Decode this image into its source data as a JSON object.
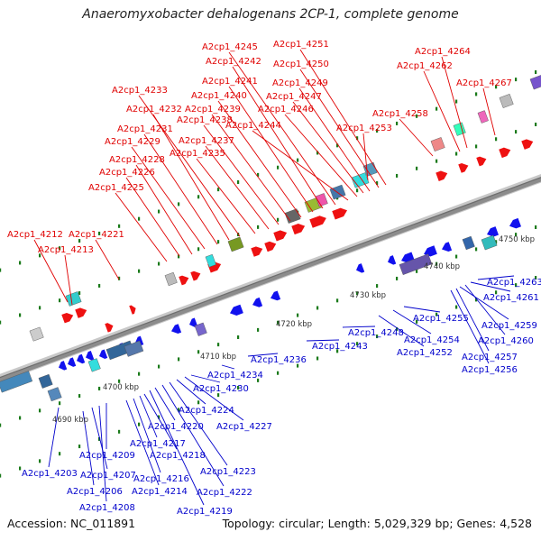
{
  "title": "Anaeromyxobacter dehalogenans 2CP-1, complete genome",
  "footer": {
    "accession": "Accession: NC_011891",
    "summary": "Topology: circular; Length: 5,029,329 bp; Genes: 4,528"
  },
  "colors": {
    "top_label": "#e00000",
    "bottom_label": "#0000cc",
    "forward_gene": "#ee1111",
    "reverse_gene": "#1111ee",
    "backbone": "#8c8c8c",
    "tick": "#1a7a1a"
  },
  "scale_labels": [
    "4690 kbp",
    "4700 kbp",
    "4710 kbp",
    "4720 kbp",
    "4730 kbp",
    "4740 kbp",
    "4750 kbp"
  ],
  "top_labels": [
    "A2cp1_4212",
    "A2cp1_4213",
    "A2cp1_4221",
    "A2cp1_4225",
    "A2cp1_4226",
    "A2cp1_4228",
    "A2cp1_4229",
    "A2cp1_4231",
    "A2cp1_4232",
    "A2cp1_4233",
    "A2cp1_4235",
    "A2cp1_4237",
    "A2cp1_4238",
    "A2cp1_4239",
    "A2cp1_4240",
    "A2cp1_4241",
    "A2cp1_4242",
    "A2cp1_4245",
    "A2cp1_4244",
    "A2cp1_4246",
    "A2cp1_4247",
    "A2cp1_4249",
    "A2cp1_4250",
    "A2cp1_4251",
    "A2cp1_4253",
    "A2cp1_4258",
    "A2cp1_4262",
    "A2cp1_4264",
    "A2cp1_4267"
  ],
  "bottom_labels": [
    "A2cp1_4203",
    "A2cp1_4206",
    "A2cp1_4207",
    "A2cp1_4208",
    "A2cp1_4209",
    "A2cp1_4214",
    "A2cp1_4216",
    "A2cp1_4217",
    "A2cp1_4218",
    "A2cp1_4219",
    "A2cp1_4220",
    "A2cp1_4222",
    "A2cp1_4223",
    "A2cp1_4224",
    "A2cp1_4227",
    "A2cp1_4230",
    "A2cp1_4234",
    "A2cp1_4236",
    "A2cp1_4243",
    "A2cp1_4248",
    "A2cp1_4252",
    "A2cp1_4254",
    "A2cp1_4255",
    "A2cp1_4256",
    "A2cp1_4257",
    "A2cp1_4259",
    "A2cp1_4260",
    "A2cp1_4261",
    "A2cp1_4263"
  ]
}
